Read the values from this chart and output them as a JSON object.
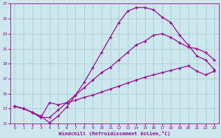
{
  "xlabel": "Windchill (Refroidissement éolien,°C)",
  "background_color": "#cce8ee",
  "grid_color": "#aacccc",
  "line_color": "#990099",
  "xlim": [
    -0.5,
    23.5
  ],
  "ylim": [
    11,
    27
  ],
  "xticks": [
    0,
    1,
    2,
    3,
    4,
    5,
    6,
    7,
    8,
    9,
    10,
    11,
    12,
    13,
    14,
    15,
    16,
    17,
    18,
    19,
    20,
    21,
    22,
    23
  ],
  "yticks": [
    11,
    13,
    15,
    17,
    19,
    21,
    23,
    25,
    27
  ],
  "line1_x": [
    0,
    1,
    2,
    3,
    4,
    5,
    6,
    7,
    8,
    9,
    10,
    11,
    12,
    13,
    14,
    15,
    16,
    17,
    18,
    19,
    20,
    21,
    22,
    23
  ],
  "line1_y": [
    13.3,
    13.0,
    12.5,
    12.0,
    11.1,
    12.0,
    13.2,
    14.8,
    16.5,
    18.5,
    20.5,
    22.5,
    24.5,
    26.0,
    26.5,
    26.5,
    26.2,
    25.2,
    24.5,
    22.8,
    21.5,
    20.0,
    19.5,
    18.2
  ],
  "line2_x": [
    0,
    1,
    2,
    3,
    4,
    5,
    6,
    7,
    8,
    9,
    10,
    11,
    12,
    13,
    14,
    15,
    16,
    17,
    18,
    19,
    20,
    21,
    22,
    23
  ],
  "line2_y": [
    13.3,
    13.0,
    12.5,
    11.8,
    11.8,
    12.8,
    13.8,
    14.8,
    15.8,
    16.8,
    17.8,
    18.5,
    19.5,
    20.5,
    21.5,
    22.0,
    22.8,
    23.0,
    22.5,
    21.8,
    21.2,
    21.0,
    20.5,
    19.5
  ],
  "line3_x": [
    0,
    1,
    2,
    3,
    4,
    5,
    6,
    7,
    8,
    9,
    10,
    11,
    12,
    13,
    14,
    15,
    16,
    17,
    18,
    19,
    20,
    21,
    22,
    23
  ],
  "line3_y": [
    13.3,
    13.0,
    12.5,
    11.8,
    13.8,
    13.5,
    13.8,
    14.1,
    14.5,
    14.8,
    15.2,
    15.6,
    16.0,
    16.4,
    16.8,
    17.2,
    17.5,
    17.8,
    18.1,
    18.4,
    18.7,
    18.0,
    17.5,
    18.0
  ]
}
